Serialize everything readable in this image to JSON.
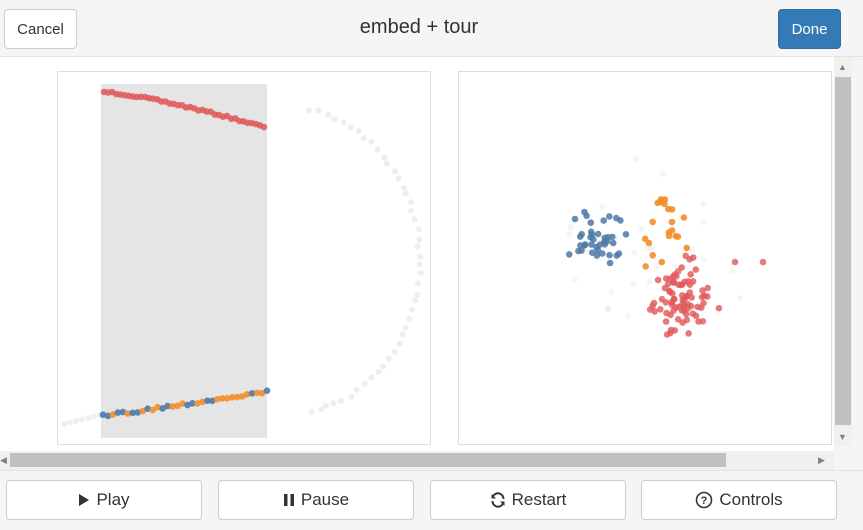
{
  "header": {
    "cancel_label": "Cancel",
    "title": "embed + tour",
    "done_label": "Done"
  },
  "controls": {
    "play_label": "Play",
    "pause_label": "Pause",
    "restart_label": "Restart",
    "controls_label": "Controls"
  },
  "colors": {
    "red": "#e15759",
    "orange": "#f28e2b",
    "blue": "#4e79a7",
    "selection": "#e5e5e5",
    "primary": "#337ab7"
  },
  "icons": {
    "play": "play-icon",
    "pause": "pause-icon",
    "restart": "refresh-icon",
    "controls": "question-circle-icon"
  }
}
